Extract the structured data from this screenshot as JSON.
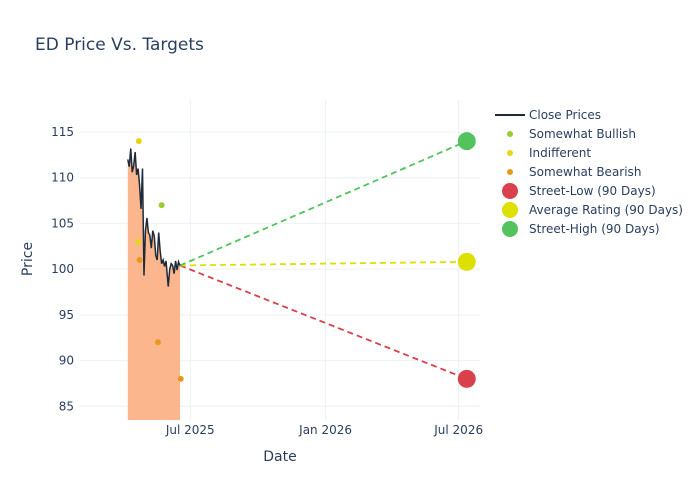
{
  "chart_data": {
    "type": "line",
    "title": "ED Price Vs. Targets",
    "xlabel": "Date",
    "ylabel": "Price",
    "xlim": [
      "2025-02-01",
      "2026-07-30"
    ],
    "ylim": [
      83.5,
      118.5
    ],
    "x_ticks": [
      {
        "date": "2025-07-01",
        "label": "Jul 2025"
      },
      {
        "date": "2026-01-01",
        "label": "Jan 2026"
      },
      {
        "date": "2026-07-01",
        "label": "Jul 2026"
      }
    ],
    "y_ticks": [
      85,
      90,
      95,
      100,
      105,
      110,
      115
    ],
    "grid": true,
    "legend_position": "right",
    "close_prices": {
      "name": "Close Prices",
      "color": "#1f2a3a",
      "fill_color": "#fbb68e",
      "points": [
        [
          "2025-04-07",
          112.0
        ],
        [
          "2025-04-09",
          111.2
        ],
        [
          "2025-04-11",
          113.2
        ],
        [
          "2025-04-13",
          110.6
        ],
        [
          "2025-04-15",
          111.3
        ],
        [
          "2025-04-17",
          112.8
        ],
        [
          "2025-04-19",
          110.3
        ],
        [
          "2025-04-21",
          111.0
        ],
        [
          "2025-04-23",
          109.2
        ],
        [
          "2025-04-25",
          106.6
        ],
        [
          "2025-04-27",
          111.0
        ],
        [
          "2025-04-29",
          99.3
        ],
        [
          "2025-05-01",
          104.2
        ],
        [
          "2025-05-03",
          105.6
        ],
        [
          "2025-05-05",
          104.0
        ],
        [
          "2025-05-07",
          103.7
        ],
        [
          "2025-05-09",
          102.3
        ],
        [
          "2025-05-11",
          104.2
        ],
        [
          "2025-05-13",
          103.6
        ],
        [
          "2025-05-15",
          101.5
        ],
        [
          "2025-05-17",
          101.0
        ],
        [
          "2025-05-19",
          104.0
        ],
        [
          "2025-05-21",
          102.0
        ],
        [
          "2025-05-23",
          100.6
        ],
        [
          "2025-05-25",
          101.0
        ],
        [
          "2025-05-27",
          100.3
        ],
        [
          "2025-05-29",
          100.9
        ],
        [
          "2025-06-01",
          98.1
        ],
        [
          "2025-06-03",
          100.0
        ],
        [
          "2025-06-05",
          100.6
        ],
        [
          "2025-06-07",
          100.4
        ],
        [
          "2025-06-09",
          99.5
        ],
        [
          "2025-06-11",
          100.9
        ],
        [
          "2025-06-13",
          99.9
        ],
        [
          "2025-06-15",
          100.8
        ],
        [
          "2025-06-17",
          100.4
        ]
      ]
    },
    "rating_series": [
      {
        "name": "Somewhat Bullish",
        "color": "#9acd32",
        "points": [
          [
            "2025-05-23",
            107
          ]
        ]
      },
      {
        "name": "Indifferent",
        "color": "#e5d61a",
        "points": [
          [
            "2025-04-22",
            114
          ],
          [
            "2025-04-21",
            103
          ]
        ]
      },
      {
        "name": "Somewhat Bearish",
        "color": "#e59a1a",
        "points": [
          [
            "2025-04-23",
            101
          ],
          [
            "2025-05-18",
            92
          ],
          [
            "2025-06-18",
            88
          ]
        ]
      }
    ],
    "targets": [
      {
        "name": "Street-Low (90 Days)",
        "color": "#d9404b",
        "start": [
          "2025-06-17",
          100.4
        ],
        "end": [
          "2026-07-12",
          88.0
        ]
      },
      {
        "name": "Average Rating (90 Days)",
        "color": "#dde000",
        "start": [
          "2025-06-17",
          100.4
        ],
        "end": [
          "2026-07-12",
          100.8
        ]
      },
      {
        "name": "Street-High (90 Days)",
        "color": "#52c35d",
        "start": [
          "2025-06-17",
          100.4
        ],
        "end": [
          "2026-07-12",
          114.0
        ]
      }
    ]
  }
}
